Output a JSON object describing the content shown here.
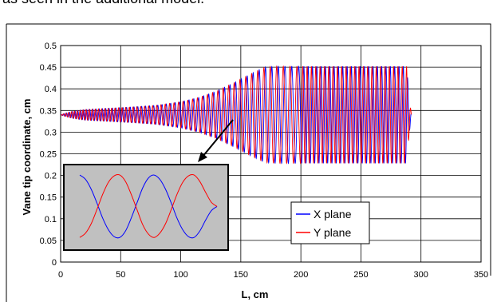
{
  "top_text": "as seen in the additional model.",
  "chart_data": {
    "type": "line",
    "xlabel": "L, cm",
    "ylabel": "Vane tip coordinate, cm",
    "xlim": [
      0,
      350
    ],
    "ylim": [
      0,
      0.5
    ],
    "xticks": [
      "0",
      "50",
      "100",
      "150",
      "200",
      "250",
      "300",
      "350"
    ],
    "yticks": [
      "0",
      "0.05",
      "0.1",
      "0.15",
      "0.2",
      "0.25",
      "0.3",
      "0.35",
      "0.4",
      "0.45",
      "0.5"
    ],
    "grid": true,
    "legend": "inside-lower-right",
    "center": 0.34,
    "envelope": {
      "x": [
        0,
        3,
        10,
        20,
        40,
        60,
        80,
        100,
        115,
        130,
        145,
        160,
        170,
        180,
        200,
        250,
        288,
        290,
        292
      ],
      "amplitude": [
        0,
        0.003,
        0.008,
        0.012,
        0.015,
        0.018,
        0.022,
        0.03,
        0.04,
        0.055,
        0.075,
        0.097,
        0.11,
        0.112,
        0.112,
        0.112,
        0.112,
        0.05,
        0
      ]
    },
    "series": [
      {
        "name": "X plane",
        "color": "#0000ff"
      },
      {
        "name": "Y plane",
        "color": "#ff0000"
      }
    ],
    "inset": {
      "series": [
        {
          "name": "X plane",
          "color": "#0000ff",
          "x": [
            0,
            1,
            2,
            3,
            4,
            5,
            6,
            7,
            8,
            9,
            10,
            11,
            12,
            13,
            14,
            15,
            16,
            17,
            18,
            19,
            20,
            21,
            22,
            23,
            24
          ],
          "y": [
            0.205,
            0.195,
            0.172,
            0.14,
            0.105,
            0.078,
            0.062,
            0.06,
            0.075,
            0.105,
            0.14,
            0.175,
            0.198,
            0.205,
            0.195,
            0.172,
            0.14,
            0.105,
            0.078,
            0.062,
            0.06,
            0.075,
            0.1,
            0.122,
            0.132
          ]
        },
        {
          "name": "Y plane",
          "color": "#ff0000",
          "x": [
            0,
            1,
            2,
            3,
            4,
            5,
            6,
            7,
            8,
            9,
            10,
            11,
            12,
            13,
            14,
            15,
            16,
            17,
            18,
            19,
            20,
            21,
            22,
            23,
            24
          ],
          "y": [
            0.06,
            0.07,
            0.092,
            0.125,
            0.16,
            0.188,
            0.203,
            0.205,
            0.19,
            0.16,
            0.125,
            0.09,
            0.068,
            0.06,
            0.07,
            0.092,
            0.125,
            0.16,
            0.188,
            0.203,
            0.205,
            0.19,
            0.165,
            0.142,
            0.132
          ]
        }
      ]
    }
  }
}
